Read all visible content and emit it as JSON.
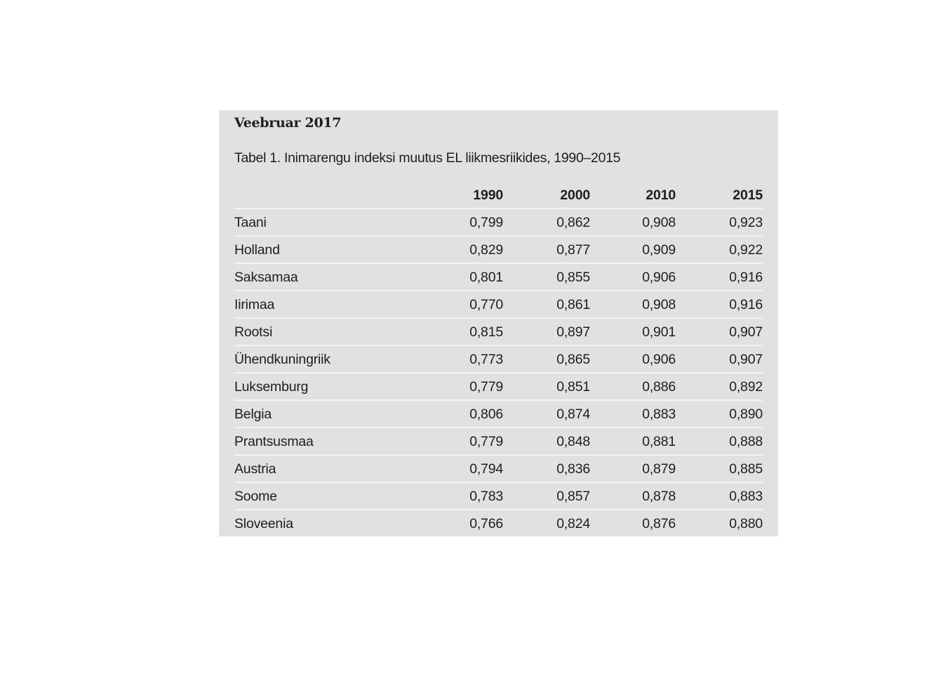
{
  "document": {
    "date": "Veebruar 2017",
    "caption": "Tabel 1. Inimarengu indeksi muutus EL liikmesriikides, 1990–2015"
  },
  "table": {
    "headers": [
      "",
      "1990",
      "2000",
      "2010",
      "2015"
    ],
    "rows": [
      [
        "Taani",
        "0,799",
        "0,862",
        "0,908",
        "0,923"
      ],
      [
        "Holland",
        "0,829",
        "0,877",
        "0,909",
        "0,922"
      ],
      [
        "Saksamaa",
        "0,801",
        "0,855",
        "0,906",
        "0,916"
      ],
      [
        "Iirimaa",
        "0,770",
        "0,861",
        "0,908",
        "0,916"
      ],
      [
        "Rootsi",
        "0,815",
        "0,897",
        "0,901",
        "0,907"
      ],
      [
        "Ühendkuningriik",
        "0,773",
        "0,865",
        "0,906",
        "0,907"
      ],
      [
        "Luksemburg",
        "0,779",
        "0,851",
        "0,886",
        "0,892"
      ],
      [
        "Belgia",
        "0,806",
        "0,874",
        "0,883",
        "0,890"
      ],
      [
        "Prantsusmaa",
        "0,779",
        "0,848",
        "0,881",
        "0,888"
      ],
      [
        "Austria",
        "0,794",
        "0,836",
        "0,879",
        "0,885"
      ],
      [
        "Soome",
        "0,783",
        "0,857",
        "0,878",
        "0,883"
      ],
      [
        "Sloveenia",
        "0,766",
        "0,824",
        "0,876",
        "0,880"
      ]
    ]
  }
}
